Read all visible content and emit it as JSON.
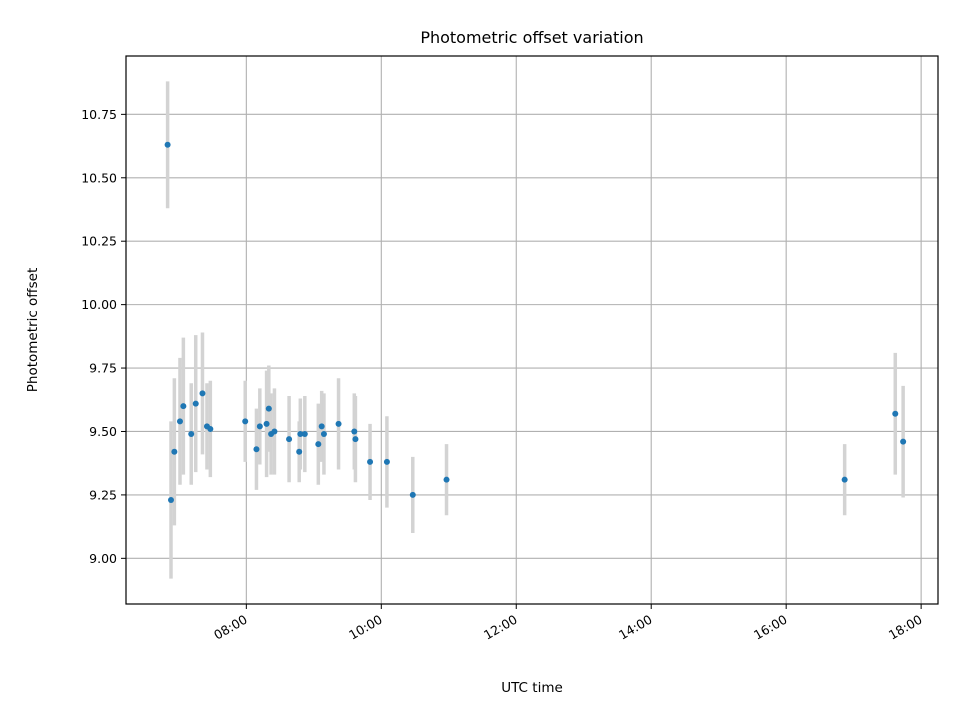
{
  "chart_data": {
    "type": "scatter",
    "title": "Photometric offset variation",
    "xlabel": "UTC time",
    "ylabel": "Photometric offset",
    "xlim": [
      "06:13",
      "18:15"
    ],
    "ylim": [
      8.82,
      10.98
    ],
    "grid": true,
    "x_tick_labels": [
      "08:00",
      "10:00",
      "12:00",
      "14:00",
      "16:00",
      "18:00"
    ],
    "y_tick_labels": [
      "9.00",
      "9.25",
      "9.50",
      "9.75",
      "10.00",
      "10.25",
      "10.50",
      "10.75"
    ],
    "y_tick_values": [
      9.0,
      9.25,
      9.5,
      9.75,
      10.0,
      10.25,
      10.5,
      10.75
    ],
    "colors": {
      "points": "#1f77b4",
      "errorbars": "#d3d3d3",
      "grid": "#b0b0b0"
    },
    "series": [
      {
        "points": [
          {
            "x": "06:50",
            "y": 10.63,
            "err": 0.25
          },
          {
            "x": "06:53",
            "y": 9.23,
            "err": 0.31
          },
          {
            "x": "06:56",
            "y": 9.42,
            "err": 0.29
          },
          {
            "x": "07:01",
            "y": 9.54,
            "err": 0.25
          },
          {
            "x": "07:04",
            "y": 9.6,
            "err": 0.27
          },
          {
            "x": "07:11",
            "y": 9.49,
            "err": 0.2
          },
          {
            "x": "07:15",
            "y": 9.61,
            "err": 0.27
          },
          {
            "x": "07:21",
            "y": 9.65,
            "err": 0.24
          },
          {
            "x": "07:25",
            "y": 9.52,
            "err": 0.17
          },
          {
            "x": "07:28",
            "y": 9.51,
            "err": 0.19
          },
          {
            "x": "07:59",
            "y": 9.54,
            "err": 0.16
          },
          {
            "x": "08:09",
            "y": 9.43,
            "err": 0.16
          },
          {
            "x": "08:12",
            "y": 9.52,
            "err": 0.15
          },
          {
            "x": "08:18",
            "y": 9.53,
            "err": 0.21
          },
          {
            "x": "08:20",
            "y": 9.59,
            "err": 0.17
          },
          {
            "x": "08:22",
            "y": 9.49,
            "err": 0.16
          },
          {
            "x": "08:25",
            "y": 9.5,
            "err": 0.17
          },
          {
            "x": "08:38",
            "y": 9.47,
            "err": 0.17
          },
          {
            "x": "08:47",
            "y": 9.42,
            "err": 0.12
          },
          {
            "x": "08:48",
            "y": 9.49,
            "err": 0.14
          },
          {
            "x": "08:52",
            "y": 9.49,
            "err": 0.15
          },
          {
            "x": "09:04",
            "y": 9.45,
            "err": 0.16
          },
          {
            "x": "09:07",
            "y": 9.52,
            "err": 0.14
          },
          {
            "x": "09:09",
            "y": 9.49,
            "err": 0.16
          },
          {
            "x": "09:22",
            "y": 9.53,
            "err": 0.18
          },
          {
            "x": "09:36",
            "y": 9.5,
            "err": 0.15
          },
          {
            "x": "09:37",
            "y": 9.47,
            "err": 0.17
          },
          {
            "x": "09:50",
            "y": 9.38,
            "err": 0.15
          },
          {
            "x": "10:05",
            "y": 9.38,
            "err": 0.18
          },
          {
            "x": "10:28",
            "y": 9.25,
            "err": 0.15
          },
          {
            "x": "10:58",
            "y": 9.31,
            "err": 0.14
          },
          {
            "x": "16:52",
            "y": 9.31,
            "err": 0.14
          },
          {
            "x": "17:37",
            "y": 9.57,
            "err": 0.24
          },
          {
            "x": "17:44",
            "y": 9.46,
            "err": 0.22
          }
        ]
      }
    ]
  }
}
